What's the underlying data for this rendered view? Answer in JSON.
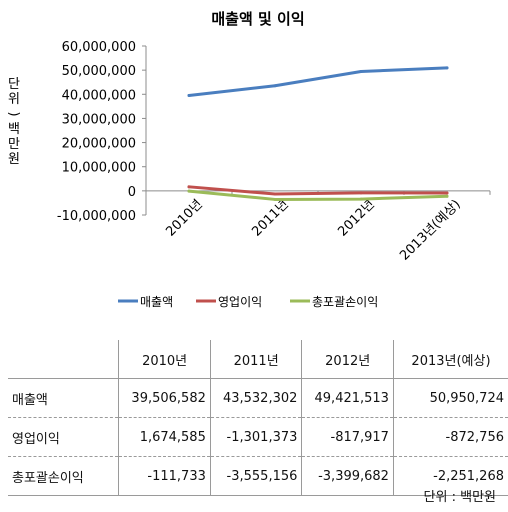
{
  "chart_data": {
    "type": "line",
    "title": "매출액 및 이익",
    "ylabel": "단위)백만원",
    "categories": [
      "2010년",
      "2011년",
      "2012년",
      "2013년(예상)"
    ],
    "ylim": [
      -10000000,
      60000000
    ],
    "yticks": [
      "60,000,000",
      "50,000,000",
      "40,000,000",
      "30,000,000",
      "20,000,000",
      "10,000,000",
      "0",
      "-10,000,000"
    ],
    "ytick_values": [
      60000000,
      50000000,
      40000000,
      30000000,
      20000000,
      10000000,
      0,
      -10000000
    ],
    "grid": false,
    "legend_position": "bottom",
    "series": [
      {
        "name": "매출액",
        "values": [
          39506582,
          43532302,
          49421513,
          50950724
        ],
        "color": "#4a7ebf"
      },
      {
        "name": "영업이익",
        "values": [
          1674585,
          -1301373,
          -817917,
          -872756
        ],
        "color": "#c0504d"
      },
      {
        "name": "총포괄손이익",
        "values": [
          -111733,
          -3555156,
          -3399682,
          -2251268
        ],
        "color": "#9bbb59"
      }
    ]
  },
  "table": {
    "headers": [
      "",
      "2010년",
      "2011년",
      "2012년",
      "2013년(예상)"
    ],
    "rows": [
      {
        "label": "매출액",
        "values": [
          "39,506,582",
          "43,532,302",
          "49,421,513",
          "50,950,724"
        ]
      },
      {
        "label": "영업이익",
        "values": [
          "1,674,585",
          "-1,301,373",
          "-817,917",
          "-872,756"
        ]
      },
      {
        "label": "총포괄손이익",
        "values": [
          "-111,733",
          "-3,555,156",
          "-3,399,682",
          "-2,251,268"
        ]
      }
    ]
  },
  "unit_note": "단위 : 백만원"
}
